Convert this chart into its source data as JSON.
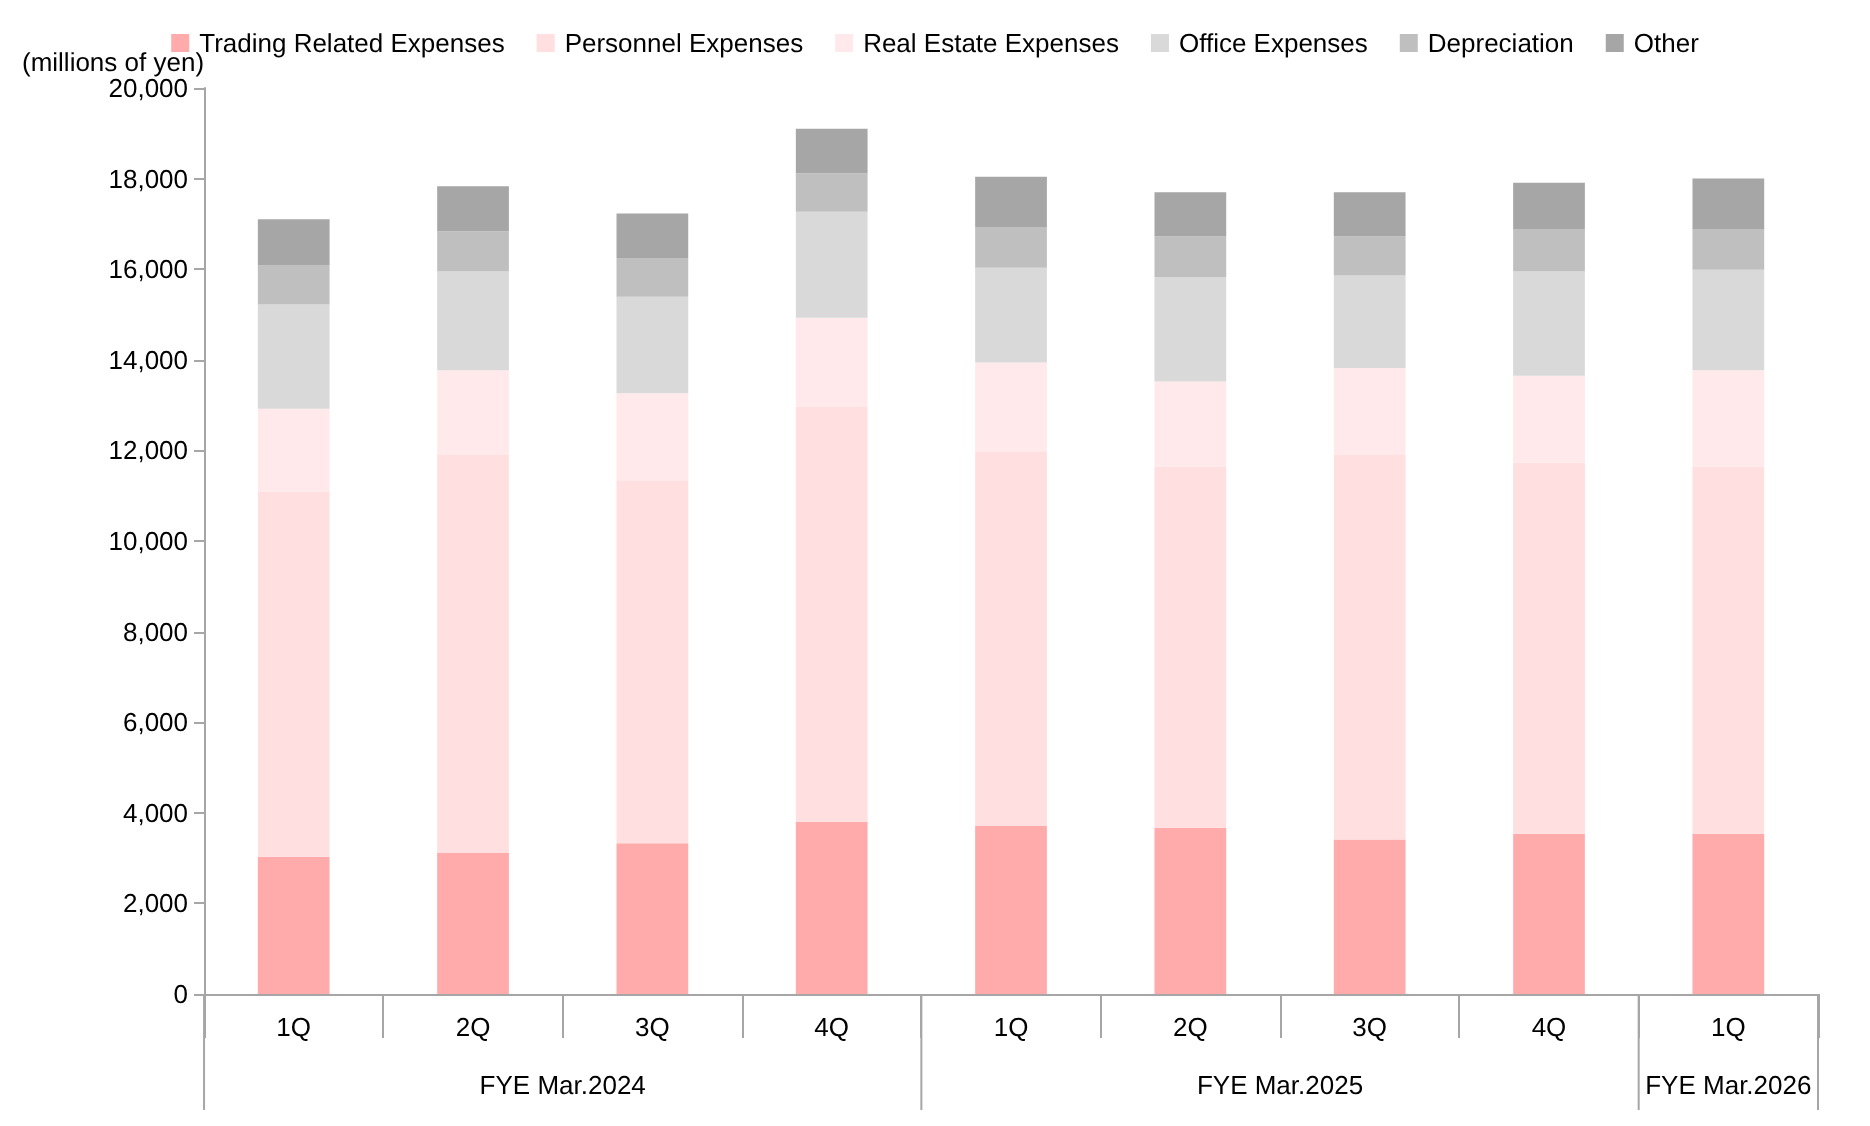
{
  "chart_data": {
    "type": "bar",
    "stacked": true,
    "ylabel": "(millions of yen)",
    "categories": [
      "1Q",
      "2Q",
      "3Q",
      "4Q",
      "1Q",
      "2Q",
      "3Q",
      "4Q",
      "1Q"
    ],
    "annotations": [
      "FYE Mar.2024",
      "FYE Mar.2025",
      "FYE Mar.2026"
    ],
    "series": [
      {
        "name": "Trading Related Expenses",
        "color": "#ffabab",
        "values": [
          3030,
          3110,
          3330,
          3800,
          3710,
          3670,
          3410,
          3540,
          3540
        ]
      },
      {
        "name": "Personnel Expenses",
        "color": "#ffdfe0",
        "values": [
          8060,
          8790,
          8010,
          9160,
          8270,
          7970,
          8490,
          8190,
          8100
        ]
      },
      {
        "name": "Real Estate Expenses",
        "color": "#ffe9ea",
        "values": [
          1830,
          1870,
          1920,
          1970,
          1960,
          1880,
          1920,
          1920,
          2130
        ]
      },
      {
        "name": "Office Expenses",
        "color": "#d9d9d9",
        "values": [
          2300,
          2180,
          2130,
          2340,
          2090,
          2300,
          2040,
          2300,
          2220
        ]
      },
      {
        "name": "Depreciation",
        "color": "#bfbfbf",
        "values": [
          860,
          890,
          860,
          850,
          900,
          900,
          860,
          940,
          900
        ]
      },
      {
        "name": "Other",
        "color": "#a6a6a6",
        "values": [
          1020,
          990,
          980,
          980,
          1110,
          980,
          980,
          1020,
          1110
        ]
      }
    ],
    "ylim": [
      0,
      20000
    ],
    "yticks": [
      0,
      {
        "value": 2000,
        "label": "2,000"
      },
      {
        "value": 4000,
        "label": "4,000"
      },
      {
        "value": 6000,
        "label": "6,000"
      },
      {
        "value": 8000,
        "label": "8,000"
      },
      {
        "value": 10000,
        "label": "10,000"
      },
      {
        "value": 12000,
        "label": "12,000"
      },
      {
        "value": 14000,
        "label": "14,000"
      },
      {
        "value": 16000,
        "label": "16,000"
      },
      {
        "value": 18000,
        "label": "18,000"
      },
      {
        "value": 20000,
        "label": "20,000"
      }
    ],
    "grid": false,
    "legend": "top"
  }
}
